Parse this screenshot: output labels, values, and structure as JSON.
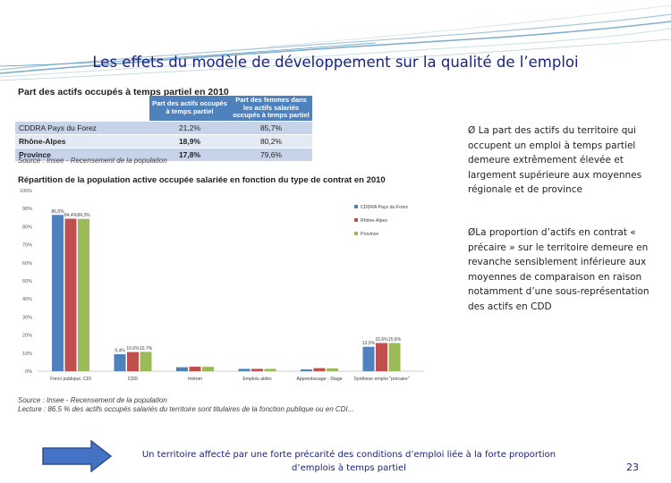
{
  "slide": {
    "title": "Les effets du modèle de développement sur la qualité de l’emploi",
    "page_number": "23",
    "colors": {
      "title": "#1a237e",
      "accent": "#4f81bd",
      "arrow": "#4472c4"
    }
  },
  "table": {
    "title": "Part des actifs occupés à temps partiel en 2010",
    "headers": [
      "",
      "Part des actifs occupés à temps partiel",
      "Part des femmes dans les actifs salariés occupés à temps partiel"
    ],
    "rows": [
      {
        "label": "CDDRA Pays du Forez",
        "col1": "21,2%",
        "col2": "85,7%"
      },
      {
        "label": "Rhône-Alpes",
        "col1": "18,9%",
        "col2": "80,2%"
      },
      {
        "label": "Province",
        "col1": "17,8%",
        "col2": "79,6%"
      }
    ],
    "source": "Source : Insee - Recensement de la population"
  },
  "chart_data": {
    "type": "bar",
    "title": "Répartition de la population active occupée salariée en fonction du type de contrat en 2010",
    "categories": [
      "Fonct publique, CDI",
      "CDD",
      "Intérim",
      "Emplois aidés",
      "Apprentissage - Stage",
      "Synthese emploi \"précaire\""
    ],
    "series": [
      {
        "name": "CDDRA Pays du Forez",
        "color": "#4f81bd",
        "values": [
          86.5,
          9.4,
          2.2,
          1.3,
          1.0,
          13.5
        ]
      },
      {
        "name": "Rhône-Alpes",
        "color": "#c0504d",
        "values": [
          84.4,
          10.6,
          2.5,
          1.3,
          1.7,
          15.6
        ]
      },
      {
        "name": "Province",
        "color": "#9bbb59",
        "values": [
          84.3,
          10.7,
          2.4,
          1.3,
          1.6,
          15.6
        ]
      }
    ],
    "data_labels": [
      {
        "series": 0,
        "index": 0,
        "text": "86,5%"
      },
      {
        "series": 1,
        "index": 0,
        "text": "84,4%"
      },
      {
        "series": 2,
        "index": 0,
        "text": "84,3%"
      },
      {
        "series": 0,
        "index": 1,
        "text": "9,4%"
      },
      {
        "series": 1,
        "index": 1,
        "text": "10,6%"
      },
      {
        "series": 2,
        "index": 1,
        "text": "10,7%"
      },
      {
        "series": 0,
        "index": 5,
        "text": "13,5%"
      },
      {
        "series": 1,
        "index": 5,
        "text": "15,6%"
      },
      {
        "series": 2,
        "index": 5,
        "text": "15,6%"
      }
    ],
    "y_ticks": [
      "0%",
      "10%",
      "20%",
      "30%",
      "40%",
      "50%",
      "60%",
      "70%",
      "80%",
      "90%",
      "100%"
    ],
    "ylim": [
      0,
      100
    ],
    "legend_position": "right",
    "grid": false
  },
  "chart_source": {
    "line1": "Source : Insee - Recensement de la population",
    "line2": "Lecture : 86,5 % des actifs occupés salariés du territoire sont titulaires de la fonction publique ou en CDI..."
  },
  "bullets": [
    "Ø La part des actifs du territoire qui occupent un emploi à temps partiel demeure extrêmement élevée et largement supérieure aux moyennes régionale et de province",
    "ØLa proportion d’actifs en contrat « précaire » sur le territoire demeure en revanche sensiblement inférieure aux moyennes de comparaison en raison notamment d’une sous-représentation des actifs en CDD"
  ],
  "footer": {
    "text": "Un territoire affecté par une forte précarité des conditions d’emploi liée à la forte proportion d’emplois à temps partiel"
  }
}
